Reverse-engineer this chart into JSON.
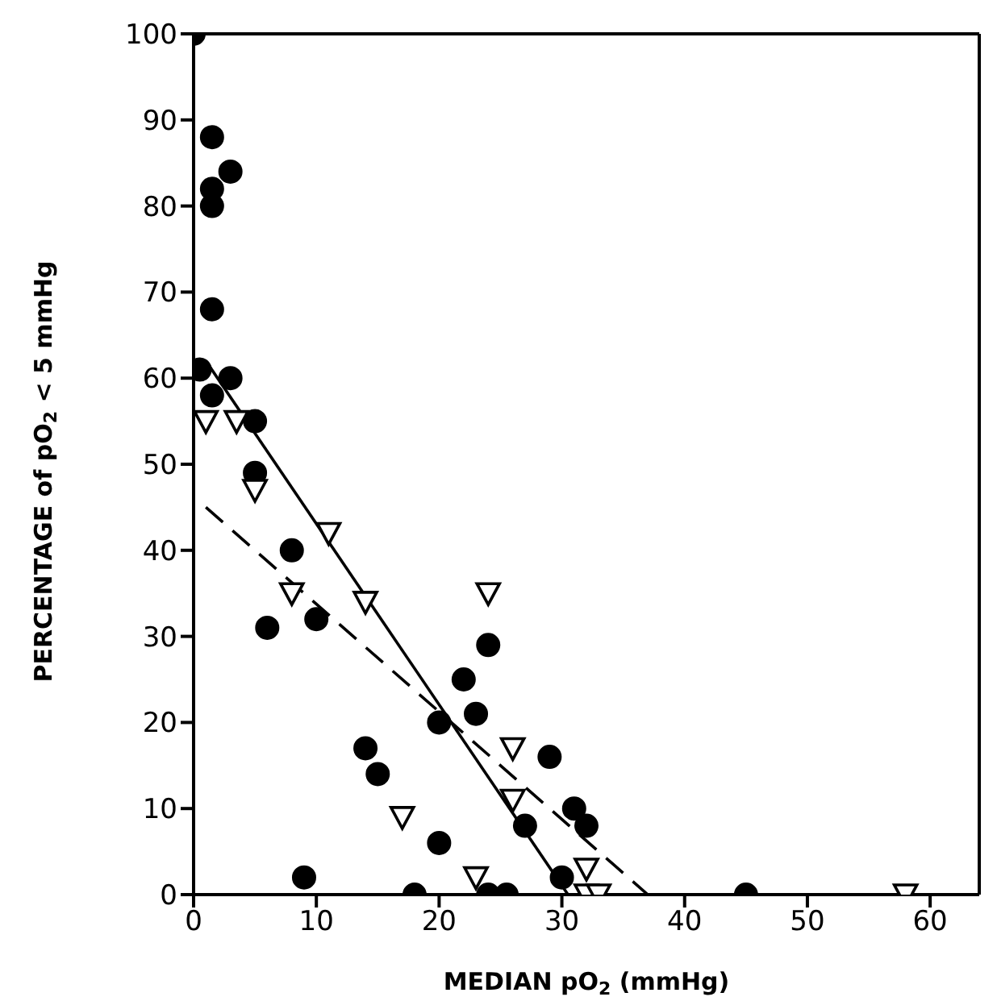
{
  "chart_data": {
    "type": "scatter",
    "xlabel": "MEDIAN pO$_{2}$ (mmHg)",
    "ylabel": "PERCENTAGE of pO$_{2}$ < 5 mmHg",
    "xlim": [
      0,
      64
    ],
    "ylim": [
      0,
      100
    ],
    "xticks": [
      0,
      10,
      20,
      30,
      40,
      50,
      60
    ],
    "yticks": [
      0,
      10,
      20,
      30,
      40,
      50,
      60,
      70,
      80,
      90,
      100
    ],
    "grid": false,
    "series": [
      {
        "marker": "circle",
        "color": "#000000",
        "x": [
          0,
          1.5,
          3,
          1.5,
          1.5,
          1.5,
          0.5,
          3,
          1.5,
          5,
          5,
          8,
          6,
          10,
          9,
          14,
          15,
          18,
          20,
          20,
          22,
          23,
          24,
          24,
          25.5,
          27,
          29,
          30,
          31,
          32,
          45
        ],
        "values": [
          100,
          88,
          84,
          82,
          80,
          68,
          61,
          60,
          58,
          55,
          49,
          40,
          31,
          32,
          2,
          17,
          14,
          0,
          20,
          6,
          25,
          21,
          29,
          0,
          0,
          8,
          16,
          2,
          10,
          8,
          0
        ]
      },
      {
        "marker": "triangle",
        "color": "#000000",
        "x": [
          1,
          3.5,
          5,
          11,
          8,
          14,
          17,
          24,
          23,
          26,
          26,
          32,
          32,
          33,
          58
        ],
        "values": [
          55,
          55,
          47,
          42,
          35,
          34,
          9,
          35,
          2,
          17,
          11,
          3,
          0,
          0,
          0
        ]
      },
      {
        "type": "line",
        "line_style": "solid",
        "color": "#000000",
        "x": [
          1,
          30.5
        ],
        "values": [
          62,
          0
        ]
      },
      {
        "type": "line",
        "line_style": "dashed",
        "color": "#000000",
        "x": [
          1,
          37
        ],
        "values": [
          45,
          0
        ]
      }
    ]
  }
}
